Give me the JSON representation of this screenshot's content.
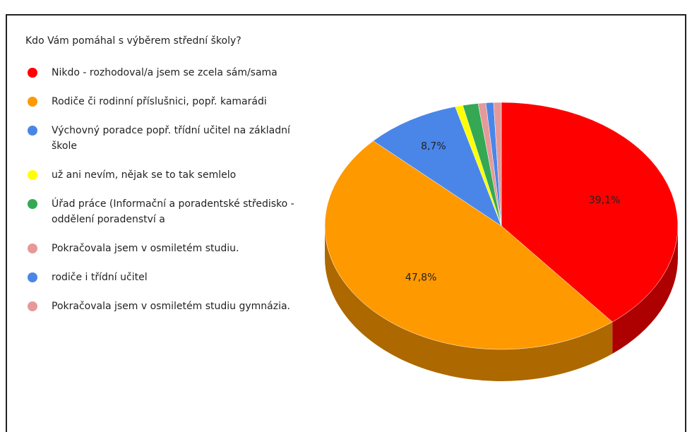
{
  "chart_data": {
    "type": "pie",
    "title": "Kdo Vám pomáhal s výběrem střední školy?",
    "categories": [
      "Nikdo - rozhodoval/a jsem se zcela sám/sama",
      "Rodiče či rodinní příslušnici, popř. kamarádi",
      "Výchovný poradce popř. třídní učitel na základní škole",
      "už ani nevím, nějak se to tak semlelo",
      "Úřad práce (Informační a poradentské středisko - oddělení poradenství a",
      "Pokračovala jsem v osmiletém studiu.",
      "rodiče i třídní učitel",
      "Pokračovala jsem v osmiletém studiu gymnázia."
    ],
    "values": [
      39.1,
      47.8,
      8.7,
      0.7,
      1.4,
      0.7,
      0.7,
      0.7
    ],
    "value_labels": [
      "39,1%",
      "47,8%",
      "8,7%",
      null,
      null,
      null,
      null,
      null
    ],
    "colors": [
      "#ff0000",
      "#ff9900",
      "#4a86e8",
      "#ffff00",
      "#34a853",
      "#e69999",
      "#4a86e8",
      "#e69999"
    ],
    "legend": "left"
  }
}
